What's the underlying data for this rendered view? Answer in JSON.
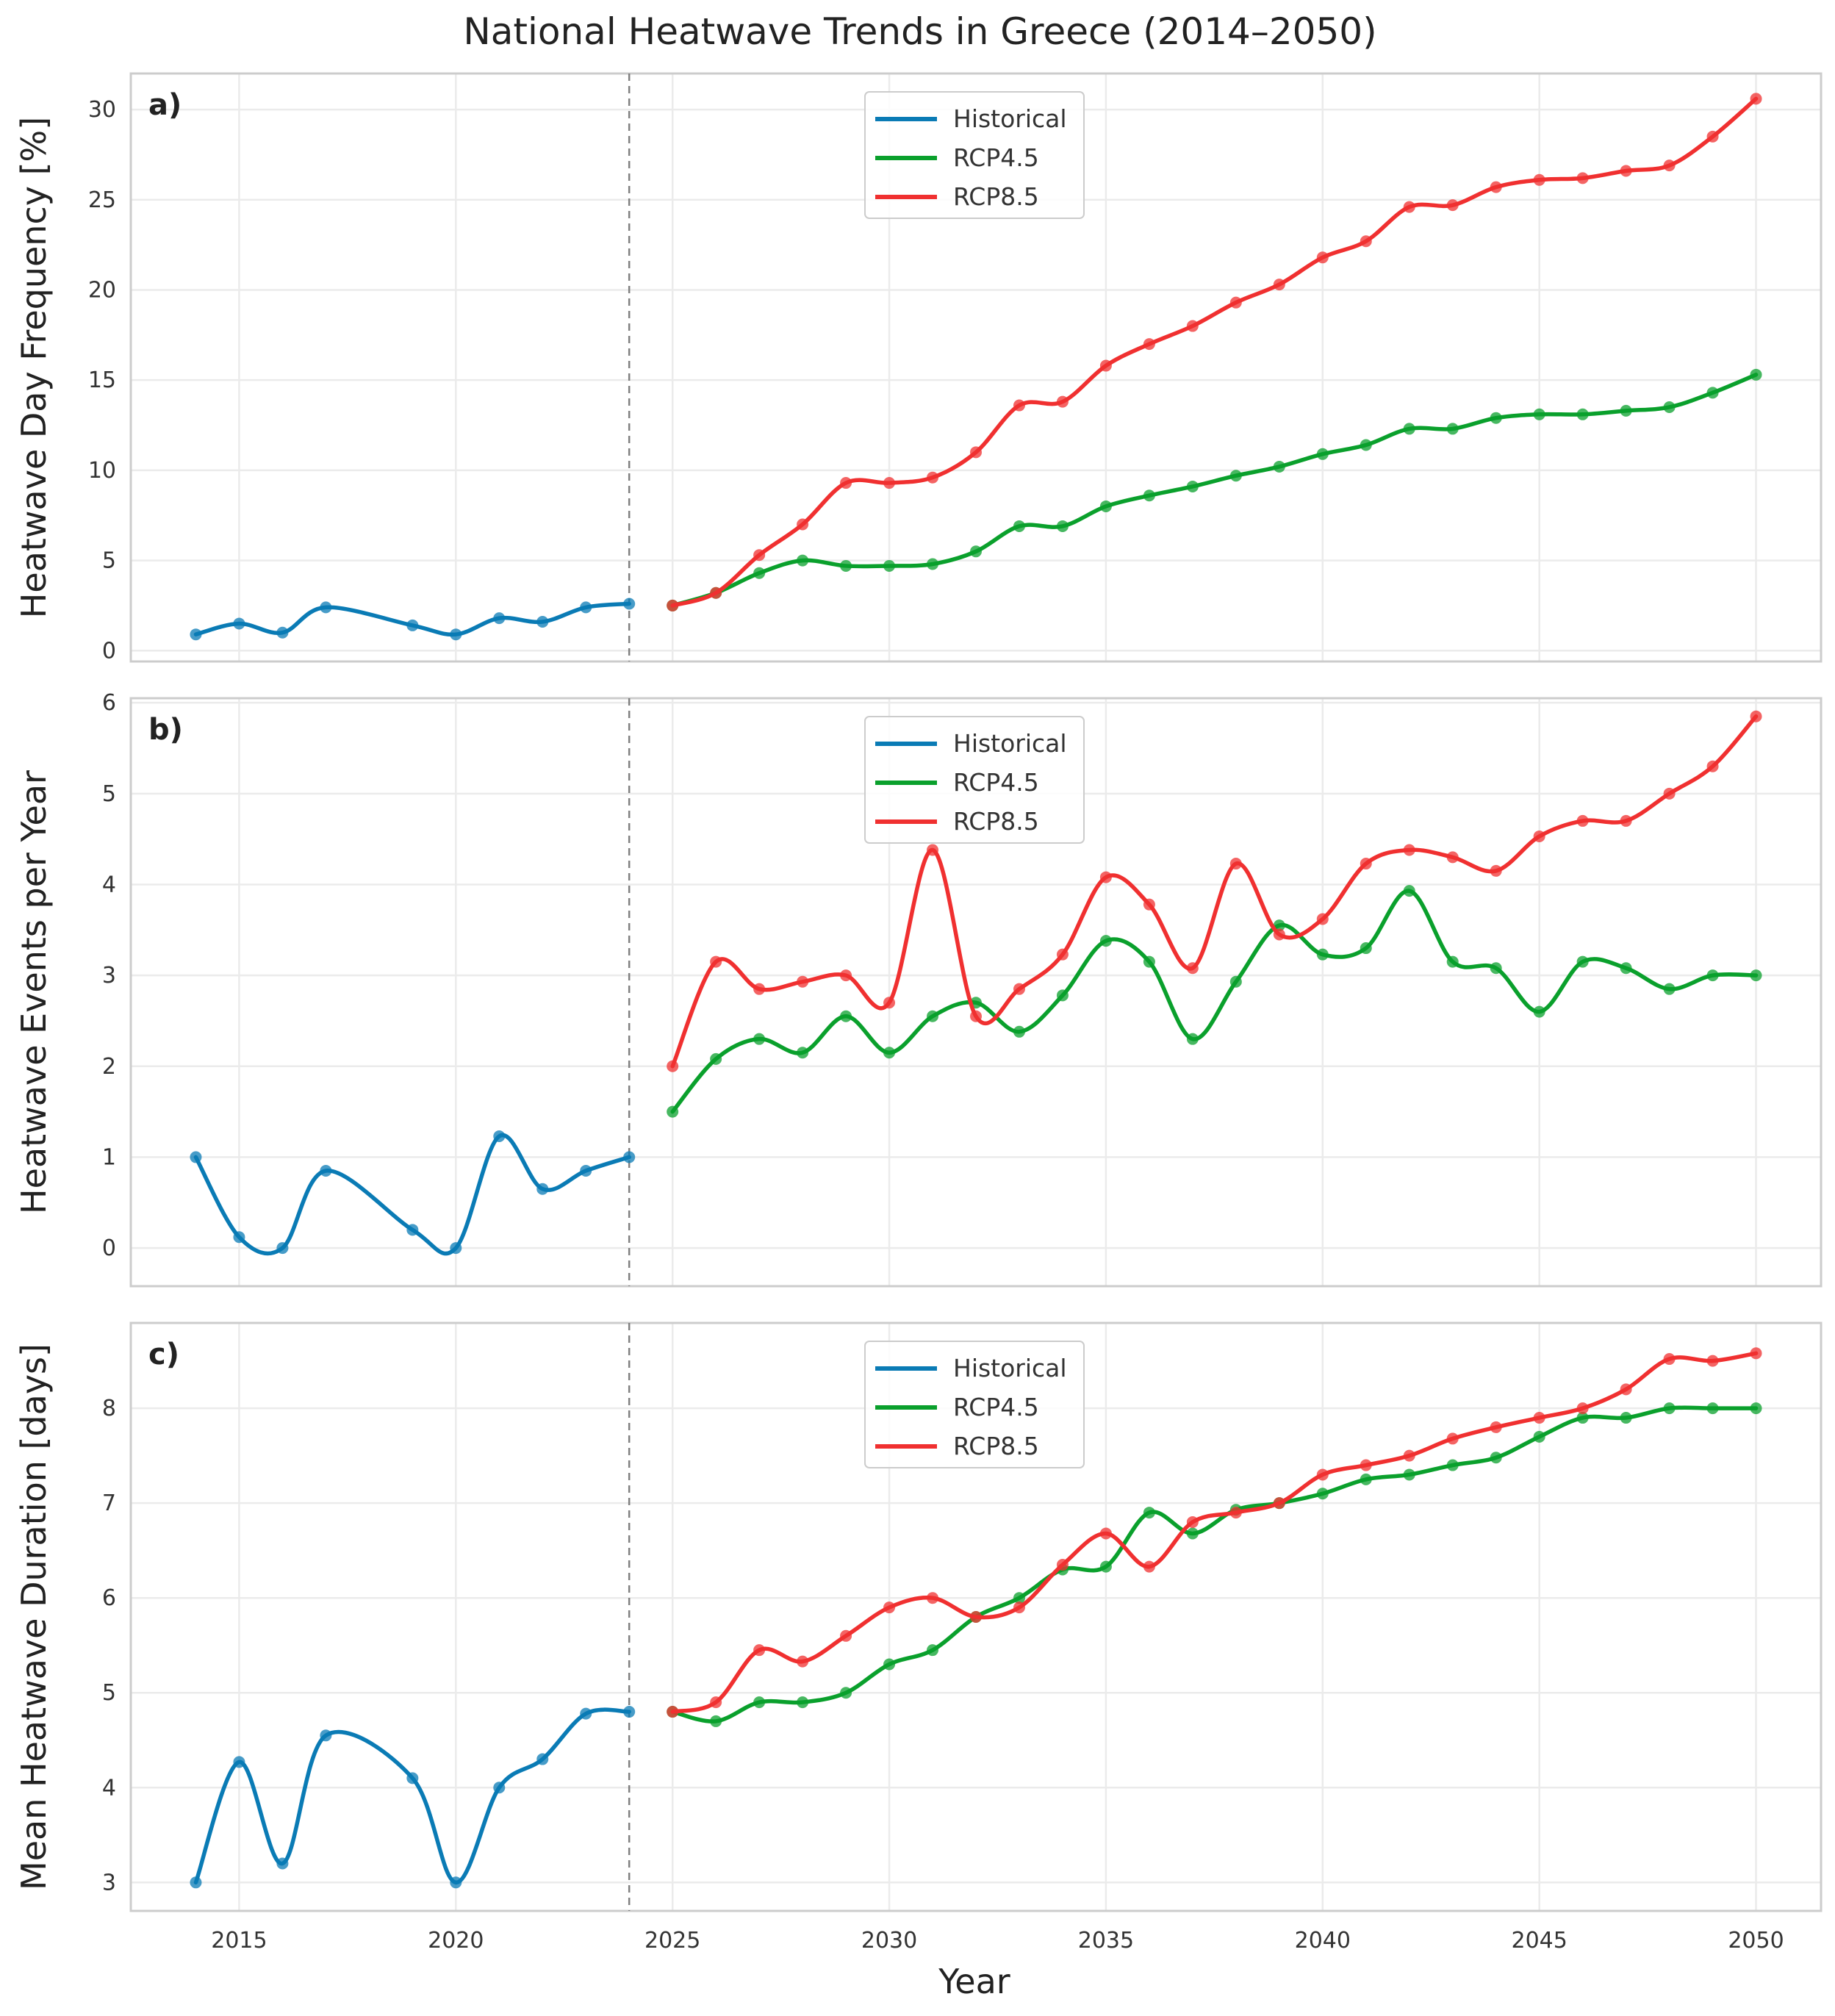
{
  "figure_title": "National Heatwave Trends in Greece (2014–2050)",
  "xlabel": "Year",
  "colors": {
    "Historical": "#0a7bb5",
    "RCP4.5": "#0aa02c",
    "RCP8.5": "#f03030"
  },
  "chart_data": [
    {
      "type": "line",
      "panel_label": "a)",
      "ylabel": "Heatwave Day Frequency [%]",
      "xlim": [
        2012.5,
        2051.5
      ],
      "ylim": [
        -0.6,
        32
      ],
      "xticks": [
        2015,
        2020,
        2025,
        2030,
        2035,
        2040,
        2045,
        2050
      ],
      "yticks": [
        0,
        5,
        10,
        15,
        20,
        25,
        30
      ],
      "grid": true,
      "legend_position": "top-center",
      "divider_x": 2024,
      "series": [
        {
          "name": "Historical",
          "x": [
            2014,
            2015,
            2016,
            2017,
            2019,
            2020,
            2021,
            2022,
            2023,
            2024
          ],
          "y": [
            0.9,
            1.5,
            1.0,
            2.4,
            1.4,
            0.9,
            1.8,
            1.6,
            2.4,
            2.6
          ]
        },
        {
          "name": "RCP4.5",
          "x": [
            2025,
            2026,
            2027,
            2028,
            2029,
            2030,
            2031,
            2032,
            2033,
            2034,
            2035,
            2036,
            2037,
            2038,
            2039,
            2040,
            2041,
            2042,
            2043,
            2044,
            2045,
            2046,
            2047,
            2048,
            2049,
            2050
          ],
          "y": [
            2.5,
            3.2,
            4.3,
            5.0,
            4.7,
            4.7,
            4.8,
            5.5,
            6.9,
            6.9,
            8.0,
            8.6,
            9.1,
            9.7,
            10.2,
            10.9,
            11.4,
            12.3,
            12.3,
            12.9,
            13.1,
            13.1,
            13.3,
            13.5,
            14.3,
            15.3
          ]
        },
        {
          "name": "RCP8.5",
          "x": [
            2025,
            2026,
            2027,
            2028,
            2029,
            2030,
            2031,
            2032,
            2033,
            2034,
            2035,
            2036,
            2037,
            2038,
            2039,
            2040,
            2041,
            2042,
            2043,
            2044,
            2045,
            2046,
            2047,
            2048,
            2049,
            2050
          ],
          "y": [
            2.5,
            3.2,
            5.3,
            7.0,
            9.3,
            9.3,
            9.6,
            11.0,
            13.6,
            13.8,
            15.8,
            17.0,
            18.0,
            19.3,
            20.3,
            21.8,
            22.7,
            24.6,
            24.7,
            25.7,
            26.1,
            26.2,
            26.6,
            26.9,
            28.5,
            30.6
          ]
        }
      ]
    },
    {
      "type": "line",
      "panel_label": "b)",
      "ylabel": "Heatwave Events per Year",
      "xlim": [
        2012.5,
        2051.5
      ],
      "ylim": [
        -0.42,
        6.05
      ],
      "xticks": [
        2015,
        2020,
        2025,
        2030,
        2035,
        2040,
        2045,
        2050
      ],
      "yticks": [
        0,
        1,
        2,
        3,
        4,
        5,
        6
      ],
      "grid": true,
      "legend_position": "top-center",
      "divider_x": 2024,
      "series": [
        {
          "name": "Historical",
          "x": [
            2014,
            2015,
            2016,
            2017,
            2019,
            2020,
            2021,
            2022,
            2023,
            2024
          ],
          "y": [
            1.0,
            0.12,
            0.0,
            0.85,
            0.2,
            0.0,
            1.23,
            0.65,
            0.85,
            1.0
          ]
        },
        {
          "name": "RCP4.5",
          "x": [
            2025,
            2026,
            2027,
            2028,
            2029,
            2030,
            2031,
            2032,
            2033,
            2034,
            2035,
            2036,
            2037,
            2038,
            2039,
            2040,
            2041,
            2042,
            2043,
            2044,
            2045,
            2046,
            2047,
            2048,
            2049,
            2050
          ],
          "y": [
            1.5,
            2.08,
            2.3,
            2.15,
            2.55,
            2.15,
            2.55,
            2.7,
            2.38,
            2.78,
            3.38,
            3.15,
            2.3,
            2.93,
            3.55,
            3.23,
            3.3,
            3.93,
            3.15,
            3.08,
            2.6,
            3.15,
            3.08,
            2.85,
            3.0,
            3.0
          ]
        },
        {
          "name": "RCP8.5",
          "x": [
            2025,
            2026,
            2027,
            2028,
            2029,
            2030,
            2031,
            2032,
            2033,
            2034,
            2035,
            2036,
            2037,
            2038,
            2039,
            2040,
            2041,
            2042,
            2043,
            2044,
            2045,
            2046,
            2047,
            2048,
            2049,
            2050
          ],
          "y": [
            2.0,
            3.15,
            2.85,
            2.93,
            3.0,
            2.7,
            4.38,
            2.55,
            2.85,
            3.23,
            4.08,
            3.78,
            3.08,
            4.23,
            3.45,
            3.62,
            4.23,
            4.38,
            4.3,
            4.15,
            4.53,
            4.7,
            4.7,
            5.0,
            5.3,
            5.85
          ]
        }
      ]
    },
    {
      "type": "line",
      "panel_label": "c)",
      "ylabel": "Mean Heatwave Duration [days]",
      "xlim": [
        2012.5,
        2051.5
      ],
      "ylim": [
        2.7,
        8.9
      ],
      "xticks": [
        2015,
        2020,
        2025,
        2030,
        2035,
        2040,
        2045,
        2050
      ],
      "xtick_labels": [
        "2015",
        "2020",
        "2025",
        "2030",
        "2035",
        "2040",
        "2045",
        "2050"
      ],
      "yticks": [
        3,
        4,
        5,
        6,
        7,
        8
      ],
      "grid": true,
      "legend_position": "top-center",
      "divider_x": 2024,
      "series": [
        {
          "name": "Historical",
          "x": [
            2014,
            2015,
            2016,
            2017,
            2019,
            2020,
            2021,
            2022,
            2023,
            2024
          ],
          "y": [
            3.0,
            4.27,
            3.2,
            4.55,
            4.1,
            3.0,
            4.0,
            4.3,
            4.78,
            4.8
          ]
        },
        {
          "name": "RCP4.5",
          "x": [
            2025,
            2026,
            2027,
            2028,
            2029,
            2030,
            2031,
            2032,
            2033,
            2034,
            2035,
            2036,
            2037,
            2038,
            2039,
            2040,
            2041,
            2042,
            2043,
            2044,
            2045,
            2046,
            2047,
            2048,
            2049,
            2050
          ],
          "y": [
            4.8,
            4.7,
            4.9,
            4.9,
            5.0,
            5.3,
            5.45,
            5.8,
            6.0,
            6.3,
            6.33,
            6.9,
            6.68,
            6.93,
            7.0,
            7.1,
            7.25,
            7.3,
            7.4,
            7.48,
            7.7,
            7.9,
            7.9,
            8.0,
            8.0,
            8.0
          ]
        },
        {
          "name": "RCP8.5",
          "x": [
            2025,
            2026,
            2027,
            2028,
            2029,
            2030,
            2031,
            2032,
            2033,
            2034,
            2035,
            2036,
            2037,
            2038,
            2039,
            2040,
            2041,
            2042,
            2043,
            2044,
            2045,
            2046,
            2047,
            2048,
            2049,
            2050
          ],
          "y": [
            4.8,
            4.9,
            5.45,
            5.33,
            5.6,
            5.9,
            6.0,
            5.8,
            5.9,
            6.35,
            6.68,
            6.33,
            6.8,
            6.9,
            7.0,
            7.3,
            7.4,
            7.5,
            7.68,
            7.8,
            7.9,
            8.0,
            8.2,
            8.52,
            8.5,
            8.58
          ]
        }
      ]
    }
  ]
}
